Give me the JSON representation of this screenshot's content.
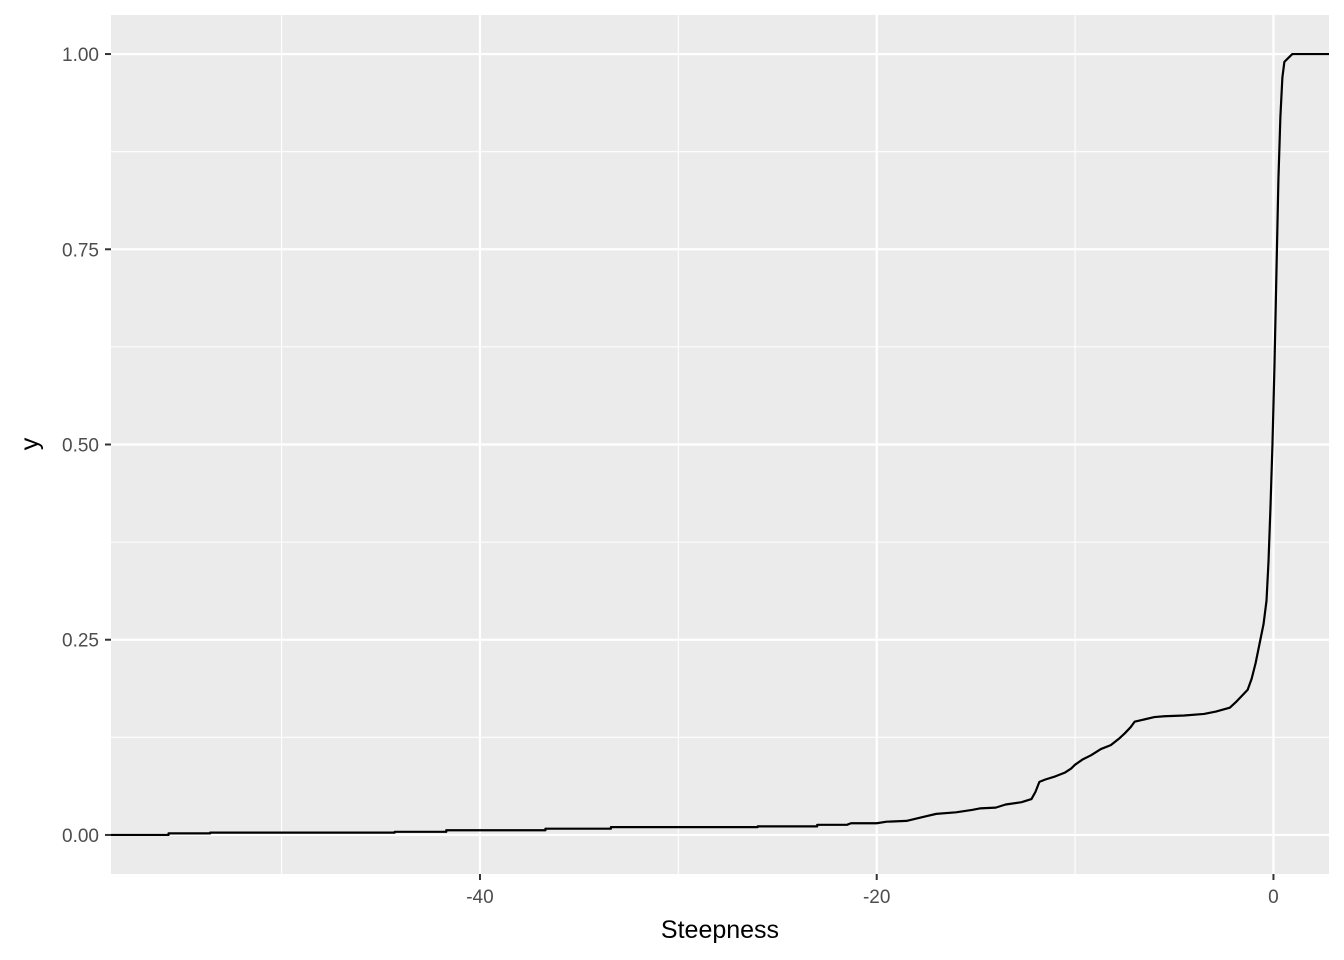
{
  "chart_data": {
    "type": "line",
    "title": "",
    "xlabel": "Steepness",
    "ylabel": "y",
    "xlim": [
      -58.6,
      2.8
    ],
    "ylim": [
      -0.05,
      1.05
    ],
    "grid": true,
    "background": "#ebebeb",
    "grid_color": "#ffffff",
    "line_color": "#000000",
    "x_ticks": [
      {
        "value": -40,
        "label": "-40"
      },
      {
        "value": -20,
        "label": "-20"
      },
      {
        "value": 0,
        "label": "0"
      }
    ],
    "x_minor_ticks": [
      -50,
      -30,
      -10
    ],
    "y_ticks": [
      {
        "value": 0,
        "label": "0.00"
      },
      {
        "value": 0.25,
        "label": "0.25"
      },
      {
        "value": 0.5,
        "label": "0.50"
      },
      {
        "value": 0.75,
        "label": "0.75"
      },
      {
        "value": 1.0,
        "label": "1.00"
      }
    ],
    "y_minor_ticks": [
      0.125,
      0.375,
      0.625,
      0.875
    ],
    "series": [
      {
        "points": [
          [
            -58.6,
            0.0
          ],
          [
            -55.7,
            0.0
          ],
          [
            -55.7,
            0.002
          ],
          [
            -53.6,
            0.002
          ],
          [
            -53.6,
            0.003
          ],
          [
            -44.3,
            0.003
          ],
          [
            -44.3,
            0.004
          ],
          [
            -41.7,
            0.004
          ],
          [
            -41.7,
            0.006
          ],
          [
            -36.7,
            0.006
          ],
          [
            -36.7,
            0.008
          ],
          [
            -33.4,
            0.008
          ],
          [
            -33.4,
            0.01
          ],
          [
            -26.0,
            0.01
          ],
          [
            -26.0,
            0.011
          ],
          [
            -23.0,
            0.011
          ],
          [
            -23.0,
            0.013
          ],
          [
            -21.5,
            0.013
          ],
          [
            -21.3,
            0.015
          ],
          [
            -20.0,
            0.015
          ],
          [
            -19.5,
            0.017
          ],
          [
            -18.5,
            0.018
          ],
          [
            -18.0,
            0.021
          ],
          [
            -17.5,
            0.024
          ],
          [
            -17.0,
            0.027
          ],
          [
            -16.0,
            0.029
          ],
          [
            -15.2,
            0.032
          ],
          [
            -14.8,
            0.034
          ],
          [
            -14.0,
            0.035
          ],
          [
            -13.5,
            0.039
          ],
          [
            -12.7,
            0.042
          ],
          [
            -12.2,
            0.046
          ],
          [
            -12.0,
            0.055
          ],
          [
            -11.8,
            0.068
          ],
          [
            -11.5,
            0.071
          ],
          [
            -11.0,
            0.075
          ],
          [
            -10.5,
            0.08
          ],
          [
            -10.2,
            0.085
          ],
          [
            -10.0,
            0.09
          ],
          [
            -9.6,
            0.097
          ],
          [
            -9.2,
            0.102
          ],
          [
            -8.7,
            0.11
          ],
          [
            -8.2,
            0.115
          ],
          [
            -7.8,
            0.123
          ],
          [
            -7.5,
            0.13
          ],
          [
            -7.2,
            0.138
          ],
          [
            -7.0,
            0.145
          ],
          [
            -6.5,
            0.148
          ],
          [
            -6.0,
            0.151
          ],
          [
            -5.5,
            0.152
          ],
          [
            -4.5,
            0.153
          ],
          [
            -3.5,
            0.155
          ],
          [
            -2.9,
            0.158
          ],
          [
            -2.2,
            0.163
          ],
          [
            -1.9,
            0.17
          ],
          [
            -1.6,
            0.178
          ],
          [
            -1.3,
            0.186
          ],
          [
            -1.1,
            0.2
          ],
          [
            -0.9,
            0.22
          ],
          [
            -0.7,
            0.245
          ],
          [
            -0.5,
            0.27
          ],
          [
            -0.35,
            0.3
          ],
          [
            -0.25,
            0.35
          ],
          [
            -0.15,
            0.42
          ],
          [
            -0.05,
            0.5
          ],
          [
            0.05,
            0.6
          ],
          [
            0.15,
            0.72
          ],
          [
            0.25,
            0.84
          ],
          [
            0.35,
            0.92
          ],
          [
            0.45,
            0.97
          ],
          [
            0.55,
            0.99
          ],
          [
            0.75,
            0.995
          ],
          [
            0.95,
            1.0
          ],
          [
            2.8,
            1.0
          ]
        ]
      }
    ]
  }
}
